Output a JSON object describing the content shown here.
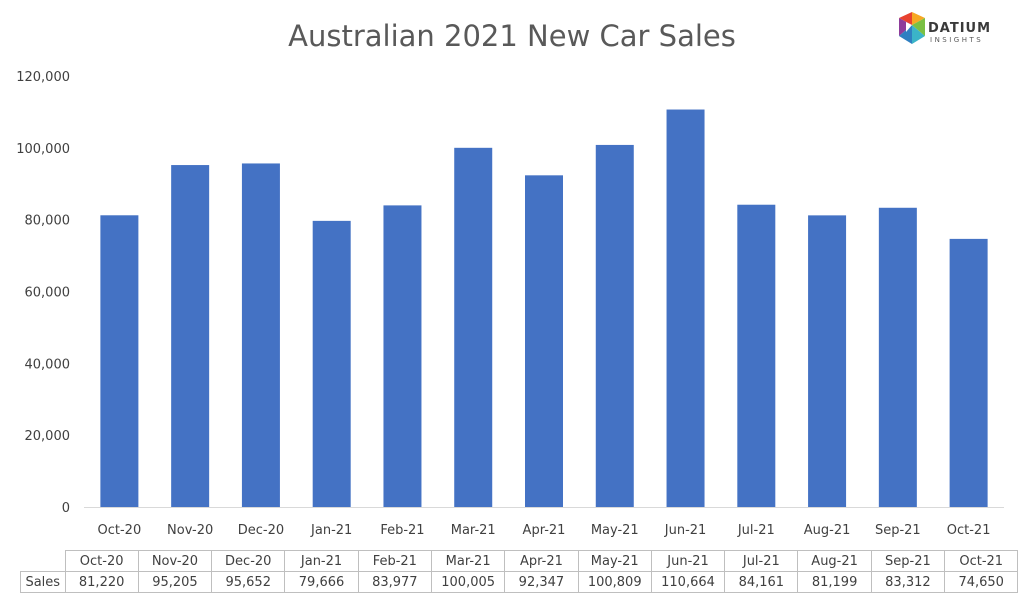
{
  "chart_data": {
    "type": "bar",
    "title": "Australian 2021 New Car Sales",
    "categories": [
      "Oct-20",
      "Nov-20",
      "Dec-20",
      "Jan-21",
      "Feb-21",
      "Mar-21",
      "Apr-21",
      "May-21",
      "Jun-21",
      "Jul-21",
      "Aug-21",
      "Sep-21",
      "Oct-21"
    ],
    "series": [
      {
        "name": "Sales",
        "values": [
          81220,
          95205,
          95652,
          79666,
          83977,
          100005,
          92347,
          100809,
          110664,
          84161,
          81199,
          83312,
          74650
        ],
        "labels": [
          "81,220",
          "95,205",
          "95,652",
          "79,666",
          "83,977",
          "100,005",
          "92,347",
          "100,809",
          "110,664",
          "84,161",
          "81,199",
          "83,312",
          "74,650"
        ],
        "color": "#4472c4"
      }
    ],
    "ylim": [
      0,
      120000
    ],
    "yticks": [
      0,
      20000,
      40000,
      60000,
      80000,
      100000,
      120000
    ],
    "ytick_labels": [
      "0",
      "20,000",
      "40,000",
      "60,000",
      "80,000",
      "100,000",
      "120,000"
    ],
    "xlabel": "",
    "ylabel": "",
    "grid": false,
    "legend": "none",
    "data_table": true
  },
  "logo": {
    "name": "DATIUM",
    "subtitle": "INSIGHTS"
  },
  "colors": {
    "bar": "#4472c4",
    "axis": "#d9d9d9",
    "table_border": "#bfbfbf"
  }
}
